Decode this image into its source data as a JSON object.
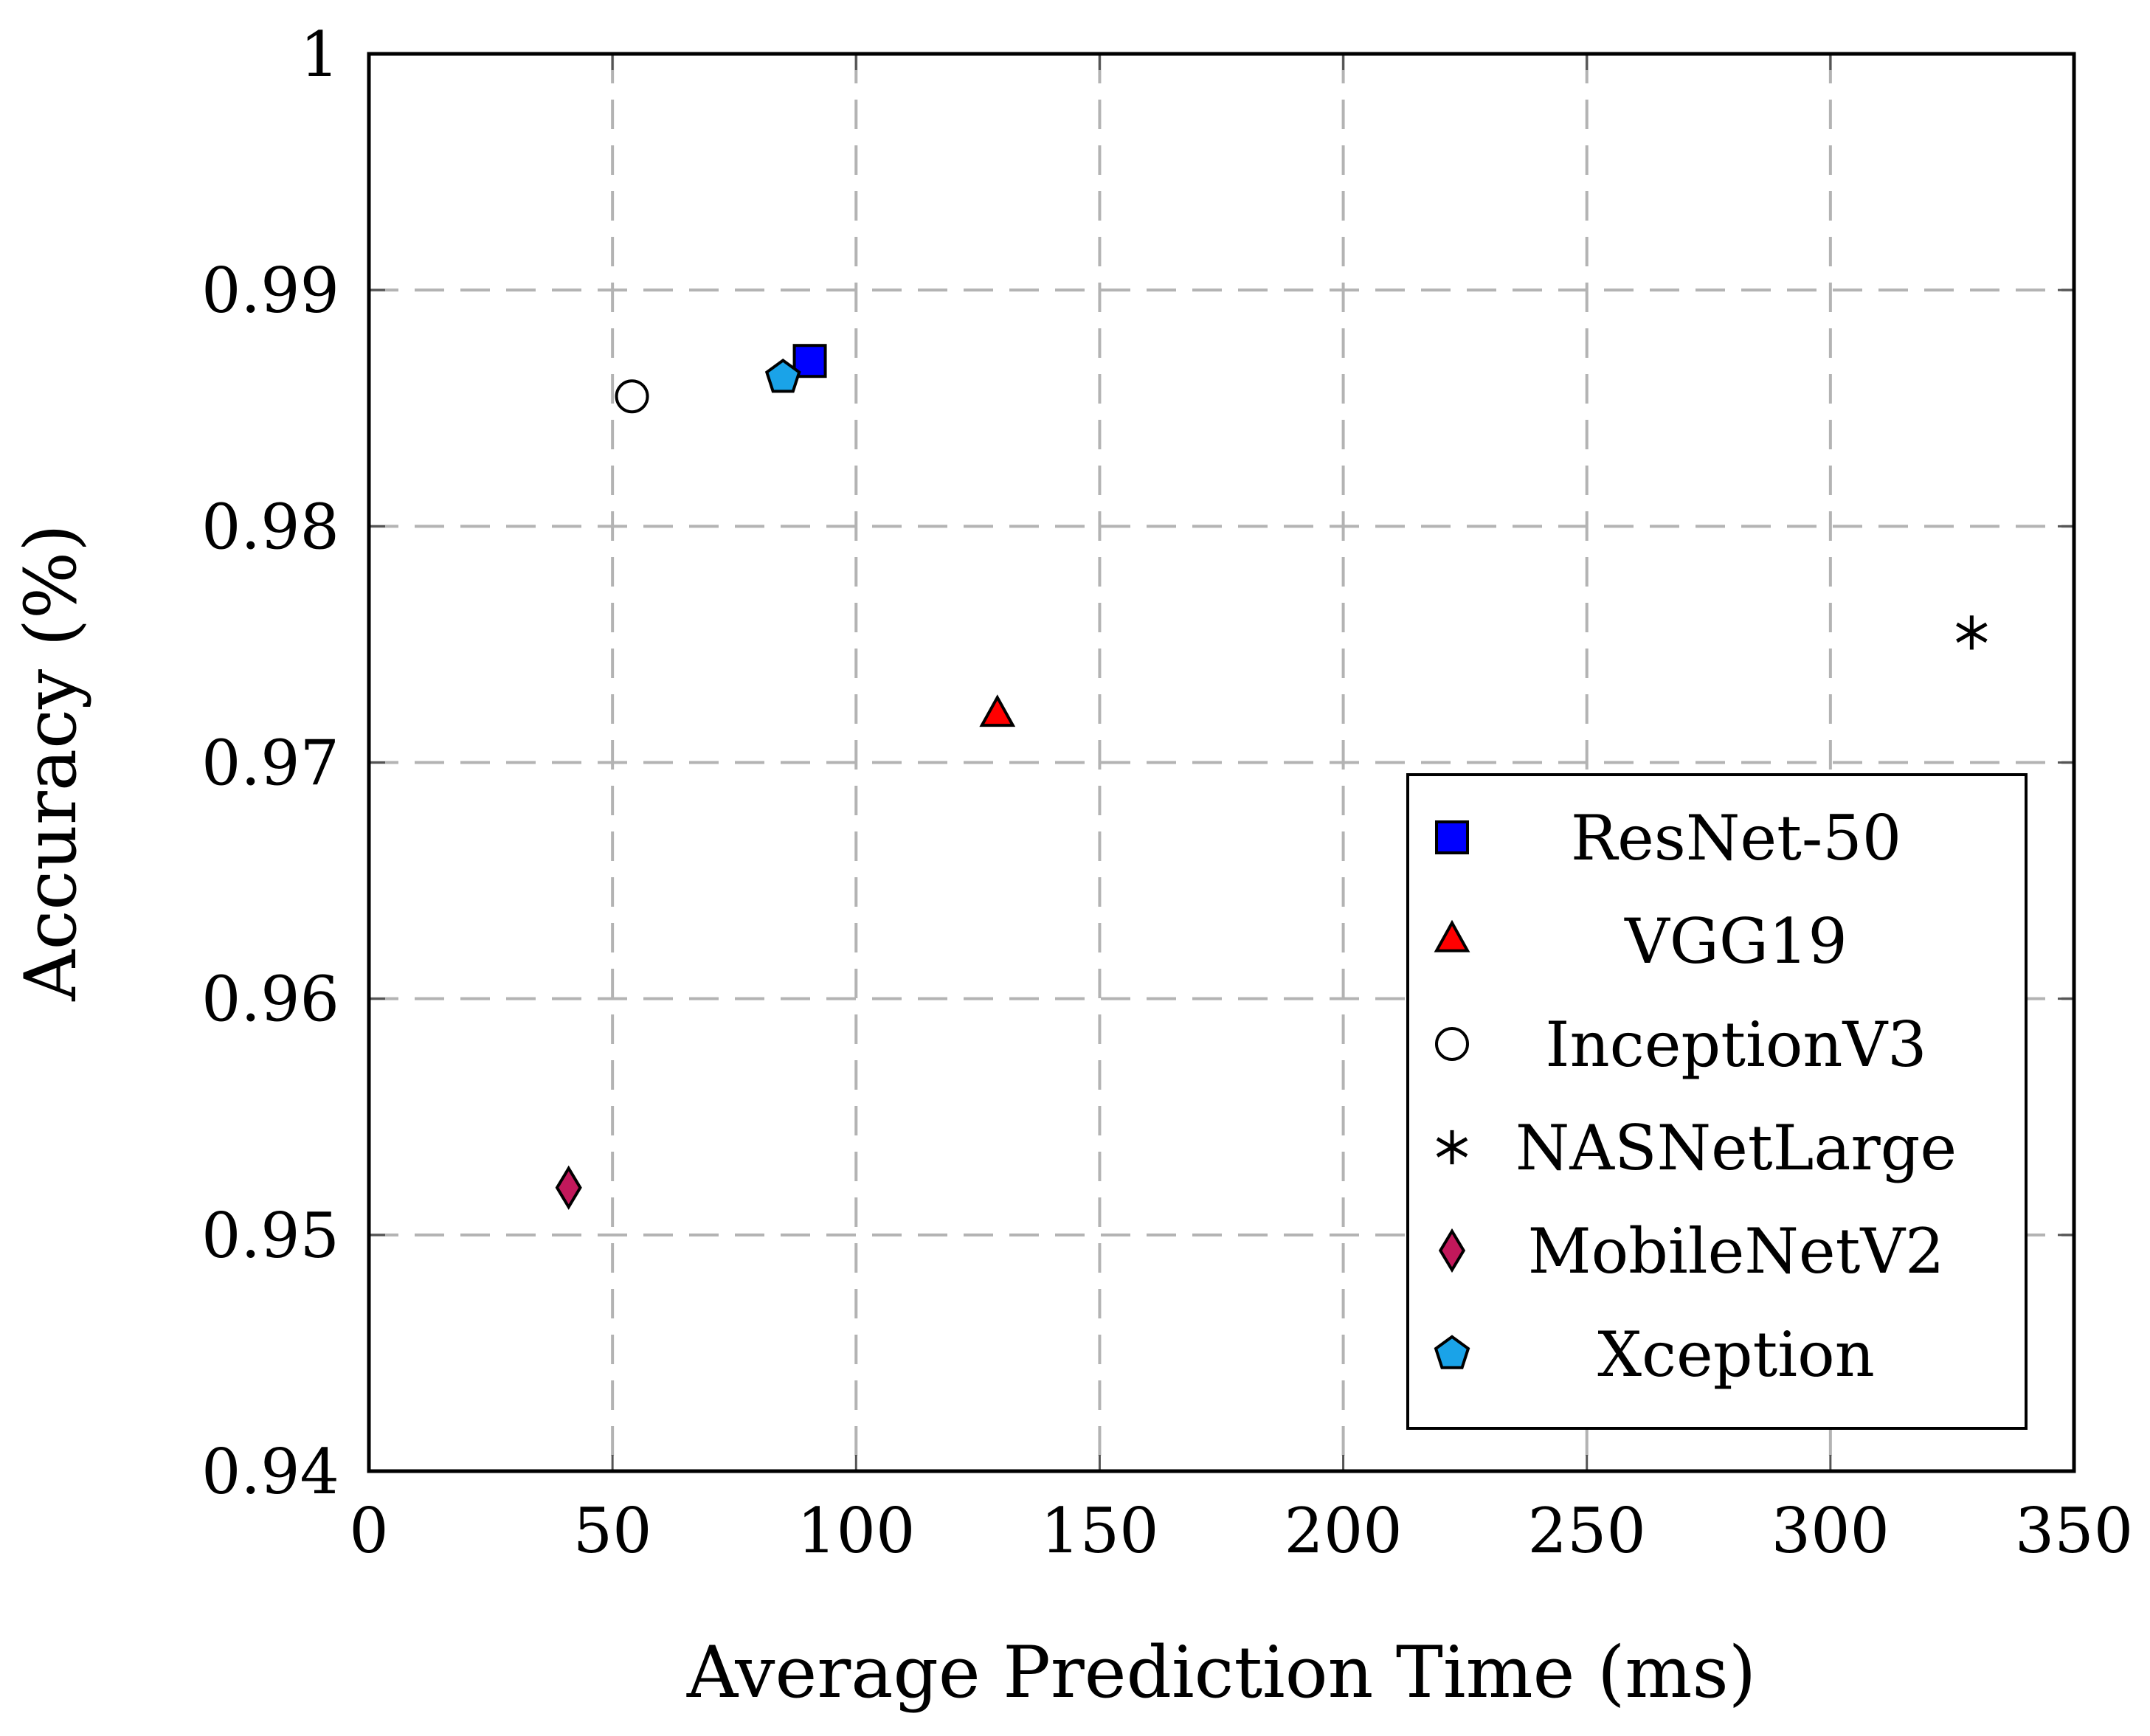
{
  "chart_data": {
    "type": "scatter",
    "title": "",
    "xlabel": "Average Prediction Time (ms)",
    "ylabel": "Accuracy (%)",
    "xlim": [
      0,
      350
    ],
    "ylim": [
      0.94,
      1
    ],
    "xticks": [
      0,
      50,
      100,
      150,
      200,
      250,
      300,
      350
    ],
    "yticks": [
      0.94,
      0.95,
      0.96,
      0.97,
      0.98,
      0.99,
      1
    ],
    "xtick_labels": [
      "0",
      "50",
      "100",
      "150",
      "200",
      "250",
      "300",
      "350"
    ],
    "ytick_labels": [
      "0.94",
      "0.95",
      "0.96",
      "0.97",
      "0.98",
      "0.99",
      "1"
    ],
    "grid": true,
    "legend_position": "bottom-right",
    "series": [
      {
        "name": "ResNet-50",
        "marker": "square",
        "color": "#0000ff",
        "x": 90.5,
        "y": 0.987
      },
      {
        "name": "VGG19",
        "marker": "triangle",
        "color": "#ff0000",
        "x": 129,
        "y": 0.972
      },
      {
        "name": "InceptionV3",
        "marker": "circle",
        "color": "#ffffff",
        "x": 54,
        "y": 0.9855
      },
      {
        "name": "NASNetLarge",
        "marker": "asterisk",
        "color": "#000000",
        "x": 329,
        "y": 0.9755
      },
      {
        "name": "MobileNetV2",
        "marker": "diamond",
        "color": "#c2185b",
        "x": 41,
        "y": 0.952
      },
      {
        "name": "Xception",
        "marker": "pentagon",
        "color": "#1aa3e8",
        "x": 85,
        "y": 0.9863
      }
    ]
  }
}
